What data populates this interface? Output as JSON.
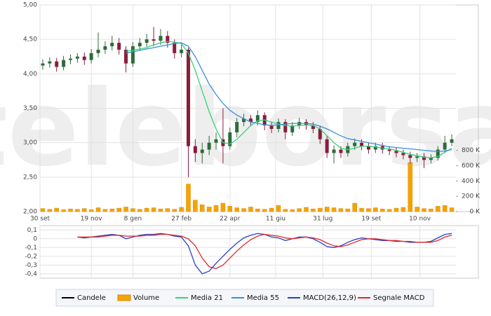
{
  "watermark": "teleborsa",
  "chart_data": [
    {
      "type": "candlestick",
      "xlim": [
        0,
        300
      ],
      "xticks": [
        {
          "value": 0,
          "label": "30 set"
        },
        {
          "value": 37,
          "label": "19 nov"
        },
        {
          "value": 67,
          "label": "8 gen"
        },
        {
          "value": 102,
          "label": "27 feb"
        },
        {
          "value": 137,
          "label": "22 apr"
        },
        {
          "value": 170,
          "label": "11 giu"
        },
        {
          "value": 204,
          "label": "31 lug"
        },
        {
          "value": 239,
          "label": "19 set"
        },
        {
          "value": 274,
          "label": "10 nov"
        }
      ],
      "ylim": [
        2,
        5
      ],
      "yticks": [
        {
          "value": 2,
          "label": "2,00"
        },
        {
          "value": 2.5,
          "label": "2,50"
        },
        {
          "value": 3,
          "label": "3,00"
        },
        {
          "value": 3.5,
          "label": "3,50"
        },
        {
          "value": 4,
          "label": "4,00"
        },
        {
          "value": 4.5,
          "label": "4,50"
        },
        {
          "value": 5,
          "label": "5,00"
        }
      ],
      "y2lim": [
        0,
        2700000
      ],
      "y2ticks": [
        {
          "value": 0,
          "label": "0 K"
        },
        {
          "value": 200000,
          "label": "200 K"
        },
        {
          "value": 400000,
          "label": "400 K"
        },
        {
          "value": 600000,
          "label": "600 K"
        },
        {
          "value": 800000,
          "label": "800 K"
        }
      ],
      "grid": true,
      "x": [
        2,
        7,
        12,
        17,
        22,
        27,
        32,
        37,
        42,
        47,
        52,
        57,
        62,
        67,
        72,
        77,
        82,
        87,
        92,
        97,
        102,
        107,
        112,
        117,
        122,
        127,
        132,
        137,
        142,
        147,
        152,
        157,
        162,
        167,
        172,
        177,
        182,
        187,
        192,
        197,
        202,
        207,
        212,
        217,
        222,
        227,
        232,
        237,
        242,
        247,
        252,
        257,
        262,
        267,
        272,
        277,
        282,
        287,
        292,
        297
      ],
      "series": [
        {
          "name": "Candele",
          "type": "candlestick",
          "color": "#000000",
          "up_color": "#2e6b3a",
          "down_color": "#8a1c3c",
          "open": [
            4.12,
            4.15,
            4.18,
            4.1,
            4.2,
            4.22,
            4.25,
            4.2,
            4.3,
            4.35,
            4.4,
            4.45,
            4.35,
            4.15,
            4.4,
            4.45,
            4.5,
            4.48,
            4.55,
            4.45,
            4.3,
            4.35,
            2.95,
            2.85,
            2.9,
            3.0,
            3.05,
            2.95,
            3.15,
            3.3,
            3.35,
            3.3,
            3.4,
            3.25,
            3.2,
            3.3,
            3.15,
            3.25,
            3.3,
            3.25,
            3.2,
            3.05,
            2.85,
            2.9,
            2.85,
            2.95,
            3.0,
            2.95,
            2.9,
            2.95,
            2.9,
            2.88,
            2.85,
            2.82,
            2.78,
            2.8,
            2.75,
            2.78,
            2.9,
            3.0
          ],
          "high": [
            4.21,
            4.24,
            4.23,
            4.26,
            4.28,
            4.3,
            4.31,
            4.36,
            4.6,
            4.47,
            4.55,
            4.52,
            4.4,
            4.46,
            4.52,
            4.58,
            4.68,
            4.65,
            4.62,
            4.5,
            4.42,
            4.38,
            3.05,
            3.0,
            3.1,
            3.15,
            3.5,
            3.22,
            3.36,
            3.42,
            3.4,
            3.47,
            3.44,
            3.3,
            3.35,
            3.34,
            3.3,
            3.36,
            3.34,
            3.3,
            3.25,
            3.1,
            2.96,
            2.95,
            3.0,
            3.06,
            3.05,
            3.0,
            3.0,
            3.0,
            2.95,
            2.93,
            2.9,
            2.87,
            2.85,
            2.85,
            2.83,
            2.95,
            3.1,
            3.12
          ],
          "low": [
            4.06,
            4.09,
            4.03,
            4.05,
            4.14,
            4.16,
            4.13,
            4.15,
            4.24,
            4.29,
            4.34,
            4.28,
            4.02,
            4.1,
            4.34,
            4.39,
            4.4,
            4.42,
            4.38,
            4.22,
            4.24,
            2.5,
            2.72,
            2.7,
            2.82,
            2.9,
            2.7,
            2.9,
            3.08,
            3.24,
            3.24,
            3.25,
            3.18,
            3.14,
            3.15,
            3.05,
            3.1,
            3.2,
            3.19,
            3.14,
            2.98,
            2.78,
            2.7,
            2.78,
            2.8,
            2.9,
            2.89,
            2.84,
            2.85,
            2.84,
            2.82,
            2.79,
            2.76,
            2.7,
            2.72,
            2.63,
            2.7,
            2.74,
            2.85,
            2.95
          ],
          "close": [
            4.15,
            4.18,
            4.1,
            4.2,
            4.22,
            4.25,
            4.2,
            4.3,
            4.35,
            4.4,
            4.45,
            4.35,
            4.15,
            4.4,
            4.45,
            4.5,
            4.48,
            4.55,
            4.45,
            4.3,
            4.35,
            2.95,
            2.85,
            2.9,
            3.0,
            3.05,
            2.95,
            3.15,
            3.3,
            3.35,
            3.3,
            3.4,
            3.25,
            3.2,
            3.3,
            3.15,
            3.25,
            3.3,
            3.25,
            3.2,
            3.05,
            2.85,
            2.9,
            2.85,
            2.95,
            3.0,
            2.95,
            2.9,
            2.95,
            2.9,
            2.88,
            2.85,
            2.82,
            2.78,
            2.8,
            2.75,
            2.78,
            2.9,
            3.0,
            3.05
          ]
        },
        {
          "name": "Volume",
          "type": "bar",
          "axis": "y2",
          "color": "#f5a300",
          "values": [
            40000,
            30000,
            45000,
            25000,
            35000,
            30000,
            40000,
            25000,
            50000,
            30000,
            35000,
            45000,
            60000,
            40000,
            30000,
            45000,
            50000,
            35000,
            40000,
            30000,
            55000,
            360000,
            150000,
            90000,
            60000,
            80000,
            110000,
            70000,
            50000,
            40000,
            60000,
            35000,
            30000,
            45000,
            80000,
            30000,
            25000,
            40000,
            55000,
            35000,
            45000,
            60000,
            50000,
            40000,
            35000,
            110000,
            45000,
            40000,
            50000,
            35000,
            30000,
            45000,
            55000,
            640000,
            60000,
            40000,
            35000,
            70000,
            80000,
            50000
          ]
        },
        {
          "name": "Media 21",
          "type": "line",
          "color": "#33d17a",
          "values": [
            null,
            null,
            null,
            null,
            null,
            null,
            null,
            null,
            null,
            null,
            null,
            null,
            4.33,
            4.34,
            4.36,
            4.38,
            4.42,
            4.45,
            4.47,
            4.46,
            4.44,
            4.3,
            4.05,
            3.75,
            3.45,
            3.2,
            3.0,
            2.98,
            3.05,
            3.15,
            3.25,
            3.32,
            3.33,
            3.3,
            3.27,
            3.25,
            3.24,
            3.25,
            3.26,
            3.25,
            3.2,
            3.1,
            3.0,
            2.92,
            2.9,
            2.92,
            2.95,
            2.95,
            2.94,
            2.92,
            2.91,
            2.89,
            2.86,
            2.83,
            2.81,
            2.79,
            2.78,
            2.8,
            2.86,
            2.92
          ]
        },
        {
          "name": "Media 55",
          "type": "line",
          "color": "#3a8fd8",
          "values": [
            null,
            null,
            null,
            null,
            null,
            null,
            null,
            null,
            null,
            null,
            null,
            null,
            4.3,
            4.32,
            4.34,
            4.36,
            4.38,
            4.4,
            4.42,
            4.44,
            4.45,
            4.4,
            4.25,
            4.05,
            3.85,
            3.7,
            3.57,
            3.47,
            3.4,
            3.35,
            3.3,
            3.28,
            3.26,
            3.25,
            3.26,
            3.27,
            3.28,
            3.28,
            3.28,
            3.27,
            3.24,
            3.2,
            3.15,
            3.1,
            3.06,
            3.04,
            3.02,
            3.0,
            2.98,
            2.96,
            2.94,
            2.93,
            2.92,
            2.91,
            2.9,
            2.89,
            2.88,
            2.87,
            2.88,
            2.9
          ]
        }
      ]
    },
    {
      "type": "line",
      "xlim": [
        0,
        300
      ],
      "ylim": [
        -0.45,
        0.15
      ],
      "yticks": [
        {
          "value": 0.1,
          "label": "0,1"
        },
        0,
        {
          "value": -0.1,
          "label": "-0,1"
        },
        {
          "value": -0.2,
          "label": "-0,2"
        },
        {
          "value": -0.3,
          "label": "-0,3"
        },
        {
          "value": -0.4,
          "label": "-0,4"
        }
      ],
      "grid": true,
      "x": [
        2,
        7,
        12,
        17,
        22,
        27,
        32,
        37,
        42,
        47,
        52,
        57,
        62,
        67,
        72,
        77,
        82,
        87,
        92,
        97,
        102,
        107,
        112,
        117,
        122,
        127,
        132,
        137,
        142,
        147,
        152,
        157,
        162,
        167,
        172,
        177,
        182,
        187,
        192,
        197,
        202,
        207,
        212,
        217,
        222,
        227,
        232,
        237,
        242,
        247,
        252,
        257,
        262,
        267,
        272,
        277,
        282,
        287,
        292,
        297
      ],
      "series": [
        {
          "name": "MACD(26,12,9)",
          "color": "#2b3fc4",
          "values": [
            null,
            null,
            null,
            null,
            null,
            0.02,
            0.01,
            0.02,
            0.03,
            0.04,
            0.05,
            0.04,
            0,
            0.02,
            0.04,
            0.05,
            0.05,
            0.06,
            0.05,
            0.03,
            0.02,
            -0.08,
            -0.3,
            -0.4,
            -0.37,
            -0.28,
            -0.2,
            -0.12,
            -0.05,
            0.01,
            0.04,
            0.06,
            0.05,
            0.02,
            0.01,
            -0.02,
            0,
            0.02,
            0.02,
            0,
            -0.04,
            -0.09,
            -0.1,
            -0.08,
            -0.04,
            -0.01,
            0.01,
            0,
            -0.01,
            -0.02,
            -0.02,
            -0.03,
            -0.03,
            -0.04,
            -0.04,
            -0.04,
            -0.03,
            0.01,
            0.05,
            0.06
          ]
        },
        {
          "name": "Segnale MACD",
          "color": "#e0282e",
          "values": [
            null,
            null,
            null,
            null,
            null,
            0.02,
            0.02,
            0.02,
            0.02,
            0.03,
            0.04,
            0.04,
            0.03,
            0.03,
            0.03,
            0.04,
            0.04,
            0.05,
            0.05,
            0.04,
            0.03,
            0,
            -0.08,
            -0.22,
            -0.32,
            -0.34,
            -0.3,
            -0.22,
            -0.14,
            -0.07,
            -0.01,
            0.03,
            0.05,
            0.04,
            0.03,
            0.01,
            0,
            0.01,
            0.02,
            0.01,
            -0.01,
            -0.05,
            -0.08,
            -0.09,
            -0.07,
            -0.04,
            -0.01,
            0,
            0,
            -0.01,
            -0.02,
            -0.02,
            -0.03,
            -0.03,
            -0.04,
            -0.04,
            -0.04,
            -0.02,
            0.02,
            0.04
          ]
        }
      ]
    }
  ]
}
